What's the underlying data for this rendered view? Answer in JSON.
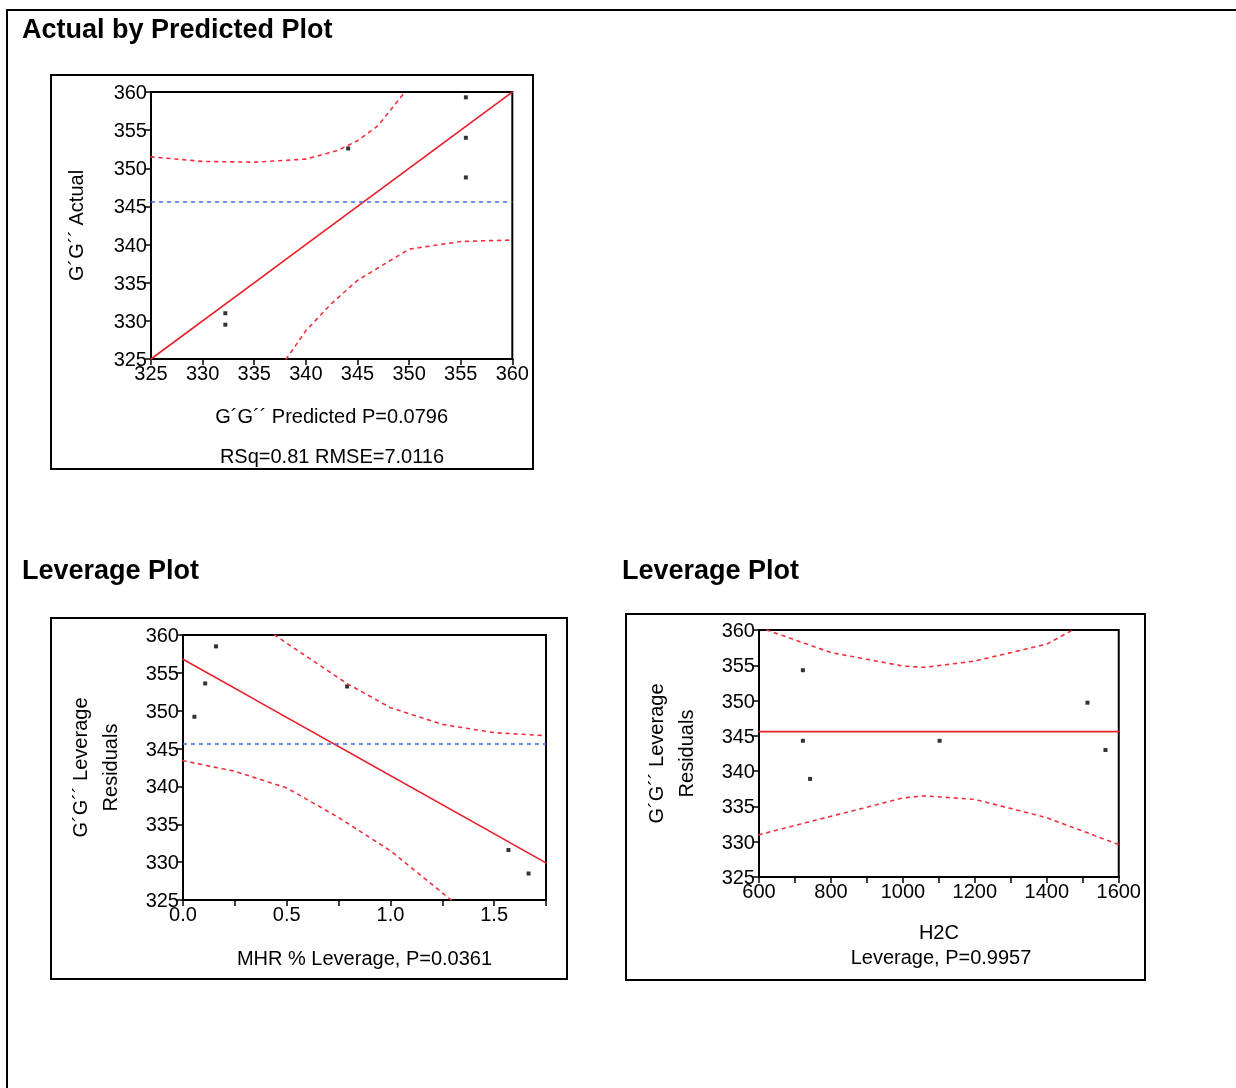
{
  "chart_data": [
    {
      "type": "scatter",
      "title": "Actual by Predicted Plot",
      "xlabel": "G´G´´ Predicted P=0.0796",
      "ylabel": "G´G´´ Actual",
      "annotations": [
        "RSq=0.81 RMSE=7.0116"
      ],
      "xlim": [
        325,
        360
      ],
      "ylim": [
        325,
        360
      ],
      "xticks": [
        325,
        330,
        335,
        340,
        345,
        350,
        355,
        360
      ],
      "yticks": [
        325,
        330,
        335,
        340,
        345,
        350,
        355,
        360
      ],
      "grid": false,
      "ref_lines": [
        {
          "axis": "y",
          "value": 345.6,
          "color": "#3b6cf5",
          "line_style": "dashed"
        }
      ],
      "series": [
        {
          "type": "scatter",
          "color": "#000000",
          "marker": "square",
          "x": [
            332.2,
            332.2,
            344.1,
            355.5,
            355.5,
            355.5
          ],
          "values": [
            331.0,
            329.5,
            352.6,
            359.3,
            354.0,
            348.8
          ]
        },
        {
          "type": "line",
          "color": "#e8202c",
          "marker": "none",
          "line_style": "solid",
          "x": [
            325,
            360
          ],
          "values": [
            325,
            360
          ]
        },
        {
          "type": "line",
          "color": "#f0303c",
          "marker": "none",
          "line_style": "dotted",
          "x": [
            325,
            330,
            335,
            340,
            343,
            345,
            347,
            349.6
          ],
          "values": [
            351.5,
            350.9,
            350.8,
            351.2,
            352.3,
            353.6,
            355.6,
            360
          ]
        },
        {
          "type": "line",
          "color": "#f0303c",
          "marker": "none",
          "line_style": "dotted",
          "x": [
            338.1,
            340,
            342.5,
            345,
            350,
            355,
            360
          ],
          "values": [
            325,
            328.7,
            332.3,
            335.3,
            339.4,
            340.4,
            340.6
          ]
        }
      ]
    },
    {
      "type": "scatter",
      "title": "Leverage Plot",
      "xlabel": "MHR % Leverage, P=0.0361",
      "ylabel": "G´G´´ Leverage\nResiduals",
      "xlim": [
        0,
        1.75
      ],
      "ylim": [
        325,
        360
      ],
      "xticks": [
        {
          "value": 0,
          "label": "0.0"
        },
        {
          "value": 0.25,
          "label": null
        },
        0.5,
        {
          "value": 0.75,
          "label": null
        },
        {
          "value": 1,
          "label": "1.0"
        },
        {
          "value": 1.25,
          "label": null
        },
        1.5,
        {
          "value": 1.75,
          "label": null
        }
      ],
      "yticks": [
        325,
        330,
        335,
        340,
        345,
        350,
        355,
        360
      ],
      "grid": false,
      "ref_lines": [
        {
          "axis": "y",
          "value": 345.6,
          "color": "#3b6cf5",
          "line_style": "dashed"
        }
      ],
      "series": [
        {
          "type": "scatter",
          "color": "#000000",
          "marker": "square",
          "x": [
            0.055,
            0.107,
            0.159,
            0.791,
            1.569,
            1.666
          ],
          "values": [
            349.2,
            353.6,
            358.5,
            353.2,
            331.6,
            328.5
          ]
        },
        {
          "type": "line",
          "color": "#e8202c",
          "marker": "none",
          "line_style": "solid",
          "x": [
            0,
            1.75
          ],
          "values": [
            356.8,
            329.9
          ]
        },
        {
          "type": "line",
          "color": "#f0303c",
          "marker": "none",
          "line_style": "dotted",
          "x": [
            0.441,
            0.79,
            1.0,
            1.25,
            1.5,
            1.75
          ],
          "values": [
            360,
            353.6,
            350.4,
            348.2,
            347.1,
            346.7
          ]
        },
        {
          "type": "line",
          "color": "#f0303c",
          "marker": "none",
          "line_style": "dotted",
          "x": [
            0,
            0.25,
            0.5,
            0.75,
            1.0,
            1.293
          ],
          "values": [
            343.4,
            342.0,
            339.8,
            335.9,
            331.5,
            325
          ]
        }
      ]
    },
    {
      "type": "scatter",
      "title": "Leverage Plot",
      "xlabel": "H2C",
      "ylabel": "G´G´´ Leverage\nResiduals",
      "annotations": [
        "Leverage, P=0.9957"
      ],
      "xlim": [
        600,
        1600
      ],
      "ylim": [
        325,
        360
      ],
      "xticks": [
        600,
        {
          "value": 700,
          "label": null
        },
        800,
        {
          "value": 900,
          "label": null
        },
        1000,
        {
          "value": 1100,
          "label": null
        },
        1200,
        {
          "value": 1300,
          "label": null
        },
        1400,
        {
          "value": 1500,
          "label": null
        },
        1600
      ],
      "yticks": [
        325,
        330,
        335,
        340,
        345,
        350,
        355,
        360
      ],
      "grid": false,
      "series": [
        {
          "type": "scatter",
          "color": "#000000",
          "marker": "square",
          "x": [
            722,
            722,
            742,
            1102,
            1513,
            1563
          ],
          "values": [
            354.3,
            344.3,
            338.9,
            344.3,
            349.7,
            343.0
          ]
        },
        {
          "type": "line",
          "color": "#e8202c",
          "marker": "none",
          "line_style": "solid",
          "x": [
            600,
            1600
          ],
          "values": [
            345.6,
            345.6
          ]
        },
        {
          "type": "line",
          "color": "#f0303c",
          "marker": "none",
          "line_style": "dotted",
          "x": [
            622,
            800,
            1000,
            1060,
            1200,
            1400,
            1472
          ],
          "values": [
            360,
            356.8,
            354.9,
            354.7,
            355.6,
            358.0,
            360
          ]
        },
        {
          "type": "line",
          "color": "#f0303c",
          "marker": "none",
          "line_style": "dotted",
          "x": [
            600,
            800,
            1000,
            1060,
            1200,
            1400,
            1600
          ],
          "values": [
            331.0,
            333.6,
            336.2,
            336.5,
            336.0,
            333.4,
            329.6
          ]
        }
      ]
    }
  ]
}
